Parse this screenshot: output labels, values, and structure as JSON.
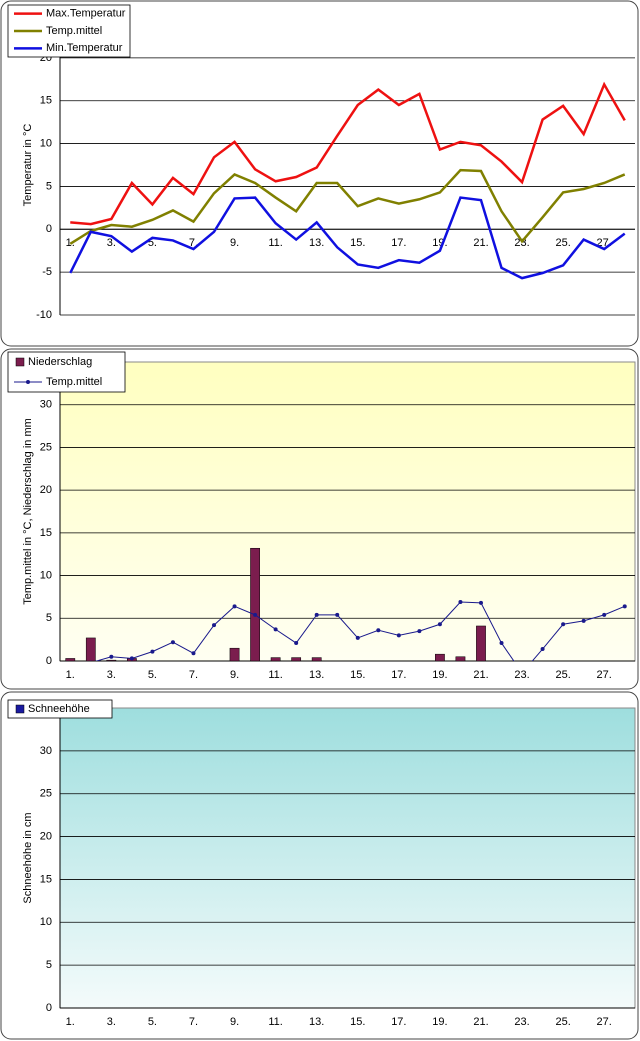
{
  "chart_data": [
    {
      "type": "line",
      "y_label": "Temperatur in °C",
      "categories": [
        "1.",
        null,
        "3.",
        null,
        "5.",
        null,
        "7.",
        null,
        "9.",
        null,
        "11.",
        null,
        "13.",
        null,
        "15.",
        null,
        "17.",
        null,
        "19.",
        null,
        "21.",
        null,
        "23.",
        null,
        "25.",
        null,
        "27.",
        null
      ],
      "series": [
        {
          "name": "Max.Temperatur",
          "color": "#ee1111",
          "values": [
            0.8,
            0.6,
            1.2,
            5.4,
            2.9,
            6.0,
            4.1,
            8.4,
            10.2,
            7.0,
            5.6,
            6.1,
            7.2,
            10.9,
            14.5,
            16.3,
            14.5,
            15.8,
            9.3,
            10.2,
            9.8,
            7.9,
            5.5,
            12.8,
            14.4,
            11.1,
            16.9,
            12.7
          ]
        },
        {
          "name": "Temp.mittel",
          "color": "#808000",
          "values": [
            -1.7,
            -0.2,
            0.5,
            0.3,
            1.1,
            2.2,
            0.9,
            4.2,
            6.4,
            5.4,
            3.7,
            2.1,
            5.4,
            5.4,
            2.7,
            3.6,
            3.0,
            3.5,
            4.3,
            6.9,
            6.8,
            2.1,
            -1.4,
            1.4,
            4.3,
            4.7,
            5.4,
            6.4
          ]
        },
        {
          "name": "Min.Temperatur",
          "color": "#1010e0",
          "values": [
            -5.1,
            -0.3,
            -0.8,
            -2.6,
            -1.0,
            -1.3,
            -2.3,
            -0.3,
            3.6,
            3.7,
            0.7,
            -1.2,
            0.8,
            -2.1,
            -4.1,
            -4.5,
            -3.6,
            -3.9,
            -2.5,
            3.7,
            3.4,
            -4.5,
            -5.7,
            -5.1,
            -4.2,
            -1.2,
            -2.3,
            -0.5
          ]
        }
      ],
      "ylim": [
        -10,
        25
      ],
      "yticks": [
        -10,
        -5,
        0,
        5,
        10,
        15,
        20
      ],
      "grid": true,
      "legend": "top-left"
    },
    {
      "type": "bar",
      "y_label": "Temp.mittel in °C, Niederschlag in mm",
      "categories": [
        "1.",
        null,
        "3.",
        null,
        "5.",
        null,
        "7.",
        null,
        "9.",
        null,
        "11.",
        null,
        "13.",
        null,
        "15.",
        null,
        "17.",
        null,
        "19.",
        null,
        "21.",
        null,
        "23.",
        null,
        "25.",
        null,
        "27.",
        null
      ],
      "series": [
        {
          "name": "Niederschlag",
          "type": "bar",
          "color": "#7b1d4e",
          "values": [
            0.3,
            2.7,
            0.1,
            0.3,
            0,
            0,
            0,
            0,
            1.5,
            13.2,
            0.4,
            0.4,
            0.4,
            0,
            0,
            0,
            0,
            0,
            0.8,
            0.5,
            4.1,
            0,
            0,
            0,
            0,
            0,
            0,
            0
          ]
        },
        {
          "name": "Temp.mittel",
          "type": "line",
          "color": "#1a1a8c",
          "values": [
            -1.7,
            -0.2,
            0.5,
            0.3,
            1.1,
            2.2,
            0.9,
            4.2,
            6.4,
            5.4,
            3.7,
            2.1,
            5.4,
            5.4,
            2.7,
            3.6,
            3.0,
            3.5,
            4.3,
            6.9,
            6.8,
            2.1,
            -1.4,
            1.4,
            4.3,
            4.7,
            5.4,
            6.4
          ]
        }
      ],
      "ylim": [
        0,
        35
      ],
      "yticks": [
        0,
        5,
        10,
        15,
        20,
        25,
        30
      ],
      "grid": true,
      "legend": "top-left"
    },
    {
      "type": "bar",
      "y_label": "Schneehöhe in cm",
      "categories": [
        "1.",
        null,
        "3.",
        null,
        "5.",
        null,
        "7.",
        null,
        "9.",
        null,
        "11.",
        null,
        "13.",
        null,
        "15.",
        null,
        "17.",
        null,
        "19.",
        null,
        "21.",
        null,
        "23.",
        null,
        "25.",
        null,
        "27.",
        null
      ],
      "series": [
        {
          "name": "Schneehöhe",
          "type": "bar",
          "color": "#1a1aa0",
          "values": [
            0,
            0,
            0,
            0,
            0,
            0,
            0,
            0,
            0,
            0,
            0,
            0,
            0,
            0,
            0,
            0,
            0,
            0,
            0,
            0,
            0,
            0,
            0,
            0,
            0,
            0,
            0,
            0
          ]
        }
      ],
      "ylim": [
        0,
        35
      ],
      "yticks": [
        0,
        5,
        10,
        15,
        20,
        25,
        30
      ],
      "grid": true,
      "legend": "top-left"
    }
  ]
}
